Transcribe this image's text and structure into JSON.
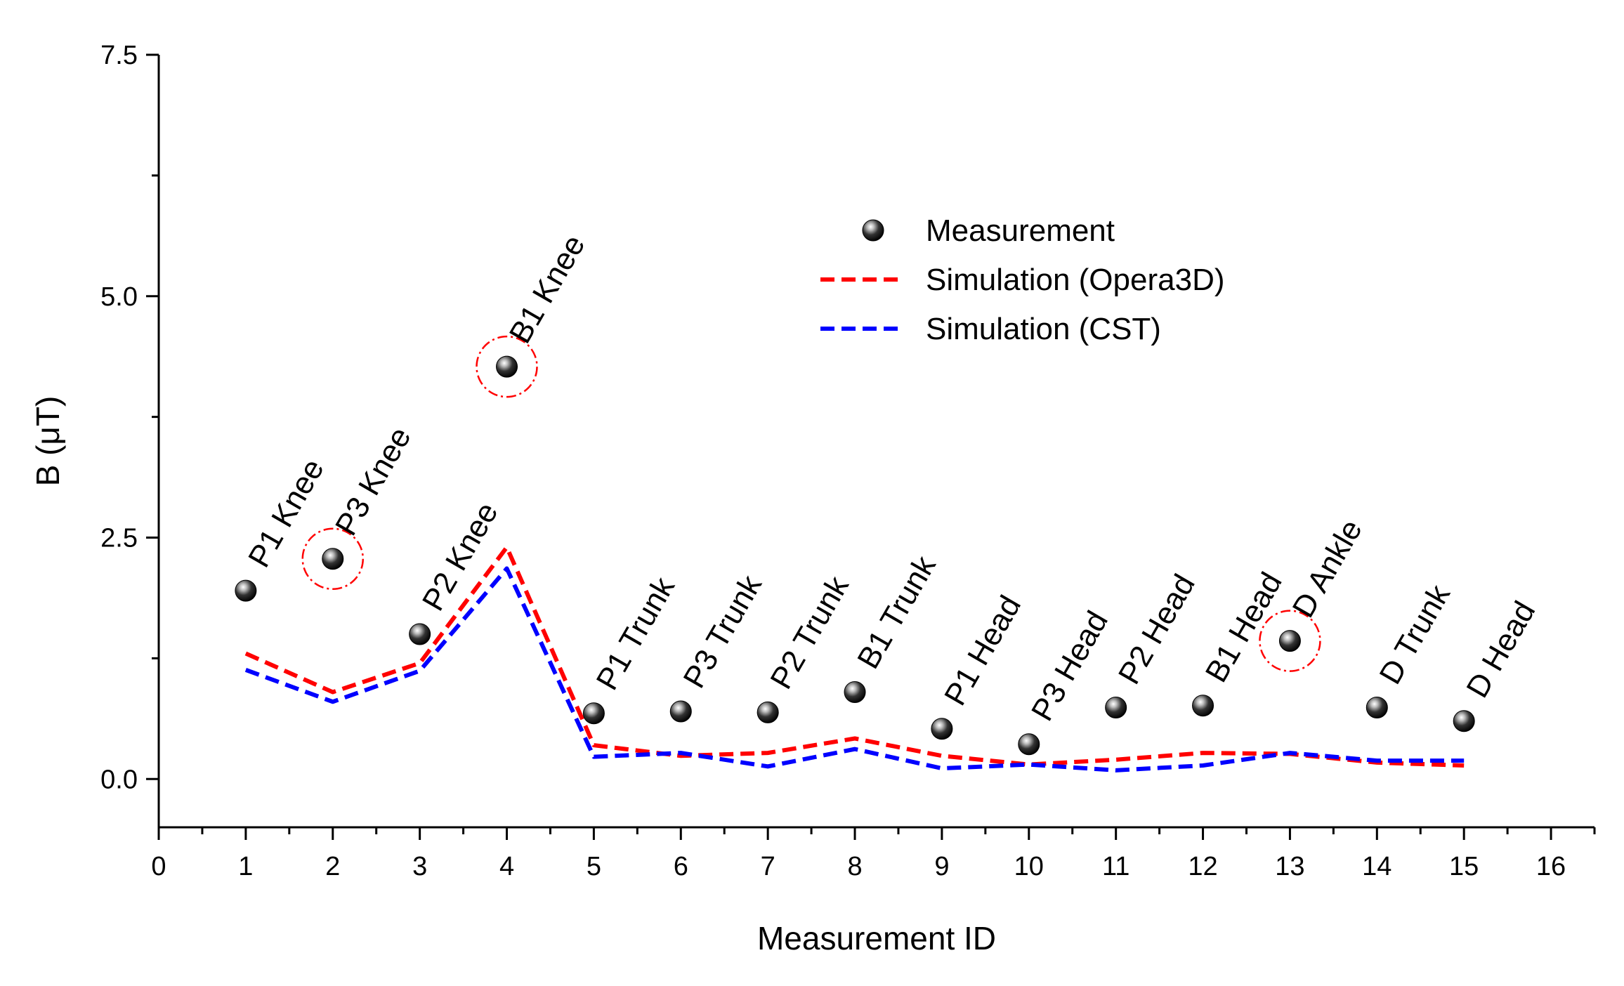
{
  "chart_data": {
    "type": "scatter",
    "title": "",
    "xlabel": "Measurement ID",
    "ylabel": "B (μT)",
    "xlim": [
      0,
      16.5
    ],
    "ylim": [
      -0.5,
      7.5
    ],
    "x_ticks": [
      0,
      1,
      2,
      3,
      4,
      5,
      6,
      7,
      8,
      9,
      10,
      11,
      12,
      13,
      14,
      15,
      16
    ],
    "y_ticks": [
      0.0,
      2.5,
      5.0,
      7.5
    ],
    "x_tick_labels": [
      "0",
      "1",
      "2",
      "3",
      "4",
      "5",
      "6",
      "7",
      "8",
      "9",
      "10",
      "11",
      "12",
      "13",
      "14",
      "15",
      "16"
    ],
    "y_tick_labels": [
      "0.0",
      "2.5",
      "5.0",
      "7.5"
    ],
    "legend_position": "upper-right",
    "series": [
      {
        "name": "Measurement",
        "style": "marker",
        "color": "#000000",
        "x": [
          1,
          2,
          3,
          4,
          5,
          6,
          7,
          8,
          9,
          10,
          11,
          12,
          13,
          14,
          15
        ],
        "y": [
          1.95,
          2.28,
          1.5,
          4.27,
          0.68,
          0.7,
          0.69,
          0.9,
          0.52,
          0.36,
          0.74,
          0.76,
          1.43,
          0.74,
          0.6
        ]
      },
      {
        "name": "Simulation (Opera3D)",
        "style": "dashed-line",
        "color": "#ff0000",
        "x": [
          1,
          2,
          3,
          4,
          5,
          6,
          7,
          8,
          9,
          10,
          11,
          12,
          13,
          14,
          15
        ],
        "y": [
          1.3,
          0.9,
          1.2,
          2.4,
          0.35,
          0.24,
          0.27,
          0.42,
          0.24,
          0.15,
          0.2,
          0.27,
          0.26,
          0.17,
          0.14
        ]
      },
      {
        "name": "Simulation (CST)",
        "style": "dashed-line",
        "color": "#0000ff",
        "x": [
          1,
          2,
          3,
          4,
          5,
          6,
          7,
          8,
          9,
          10,
          11,
          12,
          13,
          14,
          15
        ],
        "y": [
          1.13,
          0.8,
          1.12,
          2.18,
          0.23,
          0.27,
          0.13,
          0.31,
          0.11,
          0.15,
          0.09,
          0.14,
          0.27,
          0.19,
          0.19
        ]
      }
    ],
    "point_labels": [
      "P1 Knee",
      "P3 Knee",
      "P2 Knee",
      "B1 Knee",
      "P1 Trunk",
      "P3 Trunk",
      "P2 Trunk",
      "B1 Trunk",
      "P1 Head",
      "P3 Head",
      "P2 Head",
      "B1 Head",
      "D Ankle",
      "D Trunk",
      "D Head"
    ],
    "highlighted_points": [
      2,
      4,
      13
    ],
    "highlight_color": "#ff0000"
  }
}
